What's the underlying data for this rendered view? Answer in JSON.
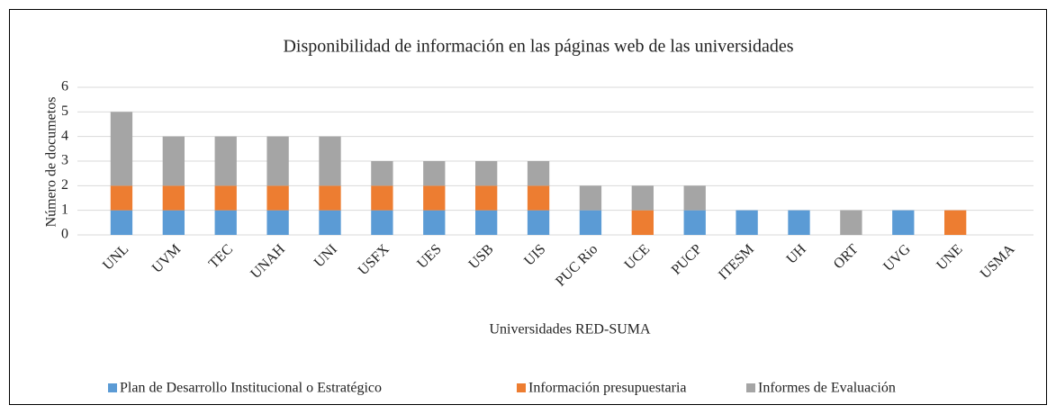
{
  "chart_data": {
    "type": "stacked_bar",
    "title": "Disponibilidad de información en las páginas web de las universidades",
    "x_label": "Universidades RED-SUMA",
    "y_label": "Número de documetos",
    "categories": [
      "UNL",
      "UVM",
      "TEC",
      "UNAH",
      "UNI",
      "USFX",
      "UES",
      "USB",
      "UIS",
      "PUC Rio",
      "UCE",
      "PUCP",
      "ITESM",
      "UH",
      "ORT",
      "UVG",
      "UNE",
      "USMA"
    ],
    "series": [
      {
        "name": "Plan de Desarrollo Institucional o Estratégico",
        "color": "#5b9bd5",
        "values": [
          1,
          1,
          1,
          1,
          1,
          1,
          1,
          1,
          1,
          1,
          0,
          1,
          1,
          1,
          0,
          1,
          0,
          0
        ]
      },
      {
        "name": "Información presupuestaria",
        "color": "#ed7d31",
        "values": [
          1,
          1,
          1,
          1,
          1,
          1,
          1,
          1,
          1,
          0,
          1,
          0,
          0,
          0,
          0,
          0,
          1,
          0
        ]
      },
      {
        "name": "Informes de Evaluación",
        "color": "#a5a5a5",
        "values": [
          3,
          2,
          2,
          2,
          2,
          1,
          1,
          1,
          1,
          1,
          1,
          1,
          0,
          0,
          1,
          0,
          0,
          0
        ]
      }
    ],
    "ylim": [
      0,
      6
    ],
    "yticks": [
      0,
      1,
      2,
      3,
      4,
      5,
      6
    ],
    "grid": true,
    "legend": "bottom"
  }
}
